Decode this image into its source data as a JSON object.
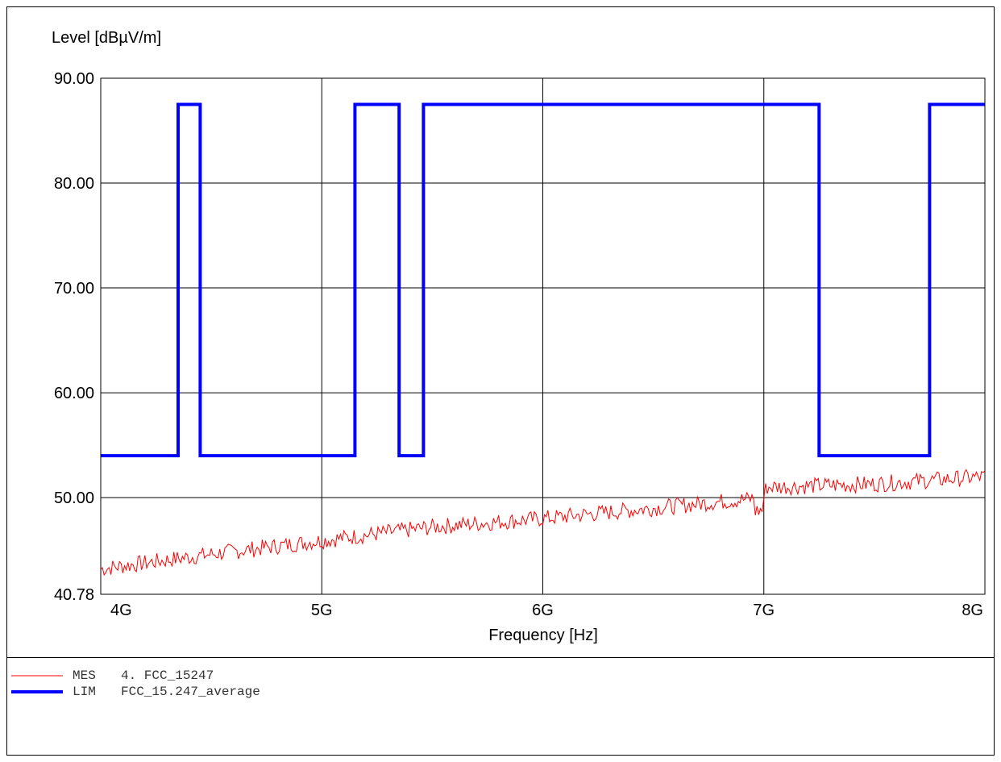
{
  "chart_data": {
    "type": "line",
    "ylabel": "Level [dBµV/m]",
    "xlabel": "Frequency [Hz]",
    "ylim": [
      40.78,
      90.0
    ],
    "xlim": [
      4000000000.0,
      8000000000.0
    ],
    "y_ticks": [
      {
        "value": 90.0,
        "label": "90.00"
      },
      {
        "value": 80.0,
        "label": "80.00"
      },
      {
        "value": 70.0,
        "label": "70.00"
      },
      {
        "value": 60.0,
        "label": "60.00"
      },
      {
        "value": 50.0,
        "label": "50.00"
      },
      {
        "value": 40.78,
        "label": "40.78"
      }
    ],
    "x_ticks": [
      {
        "value": 4000000000.0,
        "label": "4G"
      },
      {
        "value": 5000000000.0,
        "label": "5G"
      },
      {
        "value": 6000000000.0,
        "label": "6G"
      },
      {
        "value": 7000000000.0,
        "label": "7G"
      },
      {
        "value": 8000000000.0,
        "label": "8G"
      }
    ],
    "grid": true,
    "series": [
      {
        "name": "MES 4. FCC_15247",
        "tag": "MES",
        "label": "4. FCC_15247",
        "color": "#ff0000",
        "x": [
          4000000000.0,
          4500000000.0,
          5000000000.0,
          5500000000.0,
          6000000000.0,
          6500000000.0,
          7000000000.0,
          7010000000.0,
          7500000000.0,
          8000000000.0
        ],
        "y": [
          43.2,
          44.6,
          45.9,
          47.2,
          48.0,
          49.0,
          50.0,
          51.0,
          51.3,
          52.0
        ]
      },
      {
        "name": "LIM FCC_15.247_average",
        "tag": "LIM",
        "label": "FCC_15.247_average",
        "color": "#0000ff",
        "x": [
          4000000000.0,
          4350000000.0,
          4350000000.0,
          4450000000.0,
          4450000000.0,
          5150000000.0,
          5150000000.0,
          5350000000.0,
          5350000000.0,
          5460000000.0,
          5460000000.0,
          7250000000.0,
          7250000000.0,
          7750000000.0,
          7750000000.0,
          8000000000.0
        ],
        "y": [
          54.0,
          54.0,
          87.5,
          87.5,
          54.0,
          54.0,
          87.5,
          87.5,
          54.0,
          54.0,
          87.5,
          87.5,
          54.0,
          54.0,
          87.5,
          87.5
        ]
      }
    ]
  }
}
